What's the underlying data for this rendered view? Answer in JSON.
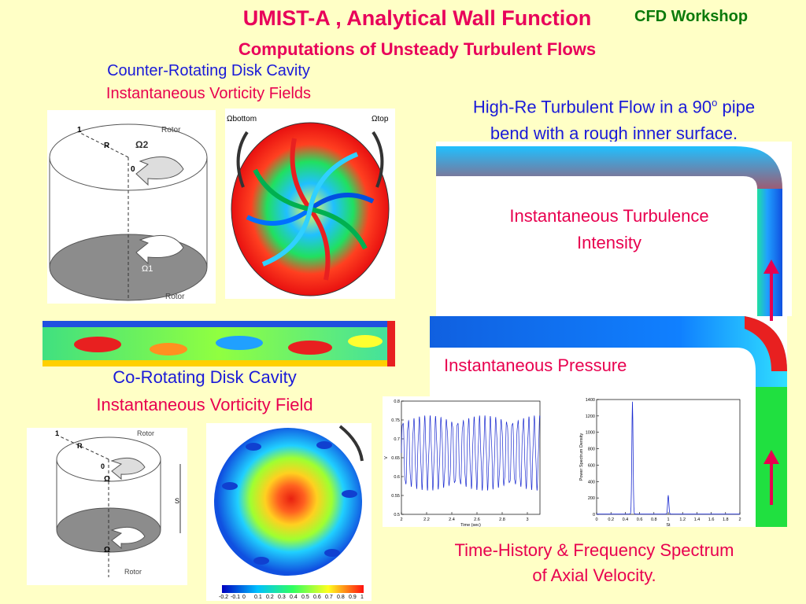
{
  "header": {
    "title": "UMIST-A , Analytical Wall Function",
    "subtitle": "Computations of Unsteady Turbulent Flows",
    "workshop": "CFD Workshop"
  },
  "counter_rotating": {
    "heading": "Counter-Rotating Disk Cavity",
    "subheading": "Instantaneous Vorticity Fields",
    "labels": {
      "top": "Rotor",
      "bottom": "Rotor",
      "one": "1",
      "r": "R",
      "zero": "0",
      "omega2": "Ω2",
      "omega1": "Ω1",
      "omega_bottom": "Ωbottom",
      "omega_top": "Ωtop"
    }
  },
  "co_rotating": {
    "heading": "Co-Rotating Disk Cavity",
    "subheading": "Instantaneous Vorticity Field",
    "labels": {
      "top": "Rotor",
      "bottom": "Rotor",
      "one": "1",
      "r": "R",
      "zero": "0",
      "omega": "Ω",
      "omega_lower": "Ω",
      "s": "S"
    },
    "colorbar_ticks": [
      "-0.2",
      "-0.1",
      "0",
      "0.1",
      "0.2",
      "0.3",
      "0.4",
      "0.5",
      "0.6",
      "0.7",
      "0.8",
      "0.9",
      "1"
    ]
  },
  "pipe_bend": {
    "heading_line1": "High-Re Turbulent Flow in a 90",
    "heading_sup": "o",
    "heading_after": " pipe",
    "heading_line2": "bend with a rough inner surface.",
    "intensity_label_line1": "Instantaneous Turbulence",
    "intensity_label_line2": "Intensity",
    "pressure_label": "Instantaneous Pressure"
  },
  "time_history": {
    "caption_line1": "Time-History & Frequency Spectrum",
    "caption_line2": "of Axial Velocity."
  },
  "chart_data": [
    {
      "type": "line",
      "xlabel": "Time (sec)",
      "ylabel": "V",
      "xlim": [
        2,
        3.1
      ],
      "ylim": [
        0.5,
        0.8
      ],
      "xticks": [
        "2",
        "2.2",
        "2.4",
        "2.6",
        "2.8",
        "3"
      ],
      "yticks": [
        "0.5",
        "0.55",
        "0.6",
        "0.65",
        "0.7",
        "0.75",
        "0.8"
      ],
      "period": 0.0435,
      "max": 0.75,
      "min": 0.575
    },
    {
      "type": "line",
      "xlabel": "St",
      "ylabel": "Power Spectrum Density",
      "xlim": [
        0,
        2
      ],
      "ylim": [
        0,
        1400
      ],
      "xticks": [
        "0",
        "0.2",
        "0.4",
        "0.6",
        "0.8",
        "1",
        "1.2",
        "1.4",
        "1.6",
        "1.8",
        "2"
      ],
      "yticks": [
        "0",
        "200",
        "400",
        "600",
        "800",
        "1000",
        "1200",
        "1400"
      ],
      "peaks": [
        {
          "x": 0.5,
          "y": 1370
        },
        {
          "x": 1.0,
          "y": 230
        }
      ]
    }
  ],
  "colors": {
    "title": "#e8005a",
    "blue": "#1a1ad8",
    "background": "#ffffc6"
  }
}
